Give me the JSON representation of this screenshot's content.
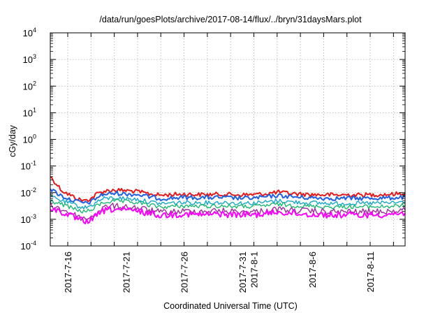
{
  "chart_data": {
    "type": "line",
    "title": "/data/run/goesPlots/archive/2017-08-14/flux/../bryn/31daysMars.plot",
    "xlabel": "Coordinated Universal Time (UTC)",
    "ylabel": "cGy/day",
    "yscale": "log",
    "ylim": [
      0.0001,
      10000
    ],
    "y_ticks": [
      {
        "value": 0.0001,
        "base": "10",
        "exp": "-4"
      },
      {
        "value": 0.001,
        "base": "10",
        "exp": "-3"
      },
      {
        "value": 0.01,
        "base": "10",
        "exp": "-2"
      },
      {
        "value": 0.1,
        "base": "10",
        "exp": "-1"
      },
      {
        "value": 1,
        "base": "10",
        "exp": "0"
      },
      {
        "value": 10,
        "base": "10",
        "exp": "1"
      },
      {
        "value": 100,
        "base": "10",
        "exp": "2"
      },
      {
        "value": 1000,
        "base": "10",
        "exp": "3"
      },
      {
        "value": 10000,
        "base": "10",
        "exp": "4"
      }
    ],
    "xlim": [
      "2017-07-14T12:00",
      "2017-08-14T00:00"
    ],
    "x_tick_labels": [
      {
        "date": "2017-07-16",
        "label": "2017-7-16"
      },
      {
        "date": "2017-07-21",
        "label": "2017-7-21"
      },
      {
        "date": "2017-07-26",
        "label": "2017-7-26"
      },
      {
        "date": "2017-07-31",
        "label": "2017-7-31"
      },
      {
        "date": "2017-08-01",
        "label": "2017-8-1"
      },
      {
        "date": "2017-08-06",
        "label": "2017-8-6"
      },
      {
        "date": "2017-08-11",
        "label": "2017-8-11"
      }
    ],
    "grid": true,
    "legend": "none",
    "series": [
      {
        "color": "#e41a1c",
        "width": 2,
        "points": [
          [
            "2017-07-14T12:00",
            0.04
          ],
          [
            "2017-07-15T00:00",
            0.022
          ],
          [
            "2017-07-15T12:00",
            0.012
          ],
          [
            "2017-07-16T00:00",
            0.009
          ],
          [
            "2017-07-16T12:00",
            0.007
          ],
          [
            "2017-07-17T00:00",
            0.0055
          ],
          [
            "2017-07-17T12:00",
            0.005
          ],
          [
            "2017-07-18T00:00",
            0.006
          ],
          [
            "2017-07-18T12:00",
            0.009
          ],
          [
            "2017-07-19T00:00",
            0.011
          ],
          [
            "2017-07-19T12:00",
            0.012
          ],
          [
            "2017-07-20T00:00",
            0.0125
          ],
          [
            "2017-07-21T00:00",
            0.012
          ],
          [
            "2017-07-22T00:00",
            0.011
          ],
          [
            "2017-07-23T00:00",
            0.009
          ],
          [
            "2017-07-24T00:00",
            0.008
          ],
          [
            "2017-07-25T00:00",
            0.0085
          ],
          [
            "2017-07-26T00:00",
            0.0088
          ],
          [
            "2017-07-27T00:00",
            0.0085
          ],
          [
            "2017-07-28T00:00",
            0.0085
          ],
          [
            "2017-07-29T00:00",
            0.0087
          ],
          [
            "2017-07-30T00:00",
            0.0085
          ],
          [
            "2017-07-31T00:00",
            0.0083
          ],
          [
            "2017-08-01T00:00",
            0.0085
          ],
          [
            "2017-08-02T00:00",
            0.009
          ],
          [
            "2017-08-03T00:00",
            0.0105
          ],
          [
            "2017-08-04T00:00",
            0.0095
          ],
          [
            "2017-08-05T00:00",
            0.0088
          ],
          [
            "2017-08-06T00:00",
            0.0085
          ],
          [
            "2017-08-07T00:00",
            0.0083
          ],
          [
            "2017-08-08T00:00",
            0.0082
          ],
          [
            "2017-08-09T00:00",
            0.0083
          ],
          [
            "2017-08-10T00:00",
            0.0082
          ],
          [
            "2017-08-11T00:00",
            0.0083
          ],
          [
            "2017-08-12T00:00",
            0.0085
          ],
          [
            "2017-08-13T00:00",
            0.0088
          ],
          [
            "2017-08-14T00:00",
            0.0095
          ]
        ]
      },
      {
        "color": "#1f5fe0",
        "width": 2,
        "points": [
          [
            "2017-07-14T12:00",
            0.014
          ],
          [
            "2017-07-15T00:00",
            0.01
          ],
          [
            "2017-07-15T12:00",
            0.0075
          ],
          [
            "2017-07-16T00:00",
            0.006
          ],
          [
            "2017-07-16T12:00",
            0.005
          ],
          [
            "2017-07-17T00:00",
            0.0045
          ],
          [
            "2017-07-17T12:00",
            0.004
          ],
          [
            "2017-07-18T00:00",
            0.0045
          ],
          [
            "2017-07-18T12:00",
            0.0065
          ],
          [
            "2017-07-19T00:00",
            0.0085
          ],
          [
            "2017-07-19T12:00",
            0.009
          ],
          [
            "2017-07-20T00:00",
            0.0095
          ],
          [
            "2017-07-21T00:00",
            0.009
          ],
          [
            "2017-07-22T00:00",
            0.0085
          ],
          [
            "2017-07-23T00:00",
            0.007
          ],
          [
            "2017-07-24T00:00",
            0.006
          ],
          [
            "2017-07-25T00:00",
            0.0063
          ],
          [
            "2017-07-26T00:00",
            0.0067
          ],
          [
            "2017-07-27T00:00",
            0.0065
          ],
          [
            "2017-07-28T00:00",
            0.0065
          ],
          [
            "2017-07-29T00:00",
            0.0066
          ],
          [
            "2017-07-30T00:00",
            0.0064
          ],
          [
            "2017-07-31T00:00",
            0.0062
          ],
          [
            "2017-08-01T00:00",
            0.0063
          ],
          [
            "2017-08-02T00:00",
            0.0068
          ],
          [
            "2017-08-03T00:00",
            0.0078
          ],
          [
            "2017-08-04T00:00",
            0.0072
          ],
          [
            "2017-08-05T00:00",
            0.0066
          ],
          [
            "2017-08-06T00:00",
            0.0064
          ],
          [
            "2017-08-07T00:00",
            0.0062
          ],
          [
            "2017-08-08T00:00",
            0.0061
          ],
          [
            "2017-08-09T00:00",
            0.0062
          ],
          [
            "2017-08-10T00:00",
            0.0061
          ],
          [
            "2017-08-11T00:00",
            0.0062
          ],
          [
            "2017-08-12T00:00",
            0.0063
          ],
          [
            "2017-08-13T00:00",
            0.0064
          ],
          [
            "2017-08-14T00:00",
            0.0068
          ]
        ]
      },
      {
        "color": "#17a7c9",
        "width": 1.4,
        "points": [
          [
            "2017-07-14T12:00",
            0.0075
          ],
          [
            "2017-07-15T00:00",
            0.006
          ],
          [
            "2017-07-15T12:00",
            0.005
          ],
          [
            "2017-07-16T00:00",
            0.0042
          ],
          [
            "2017-07-16T12:00",
            0.0036
          ],
          [
            "2017-07-17T00:00",
            0.003
          ],
          [
            "2017-07-17T12:00",
            0.0028
          ],
          [
            "2017-07-18T00:00",
            0.0032
          ],
          [
            "2017-07-18T12:00",
            0.0045
          ],
          [
            "2017-07-19T00:00",
            0.0058
          ],
          [
            "2017-07-19T12:00",
            0.0062
          ],
          [
            "2017-07-20T00:00",
            0.0064
          ],
          [
            "2017-07-21T00:00",
            0.006
          ],
          [
            "2017-07-22T00:00",
            0.0056
          ],
          [
            "2017-07-23T00:00",
            0.0045
          ],
          [
            "2017-07-24T00:00",
            0.0039
          ],
          [
            "2017-07-25T00:00",
            0.0041
          ],
          [
            "2017-07-26T00:00",
            0.0043
          ],
          [
            "2017-07-27T00:00",
            0.0042
          ],
          [
            "2017-07-28T00:00",
            0.0042
          ],
          [
            "2017-07-29T00:00",
            0.0043
          ],
          [
            "2017-07-30T00:00",
            0.0042
          ],
          [
            "2017-07-31T00:00",
            0.004
          ],
          [
            "2017-08-01T00:00",
            0.0041
          ],
          [
            "2017-08-02T00:00",
            0.0044
          ],
          [
            "2017-08-03T00:00",
            0.005
          ],
          [
            "2017-08-04T00:00",
            0.0046
          ],
          [
            "2017-08-05T00:00",
            0.0043
          ],
          [
            "2017-08-06T00:00",
            0.0042
          ],
          [
            "2017-08-07T00:00",
            0.004
          ],
          [
            "2017-08-08T00:00",
            0.0039
          ],
          [
            "2017-08-09T00:00",
            0.004
          ],
          [
            "2017-08-10T00:00",
            0.0039
          ],
          [
            "2017-08-11T00:00",
            0.004
          ],
          [
            "2017-08-12T00:00",
            0.0041
          ],
          [
            "2017-08-13T00:00",
            0.0042
          ],
          [
            "2017-08-14T00:00",
            0.0044
          ]
        ]
      },
      {
        "color": "#1cb873",
        "width": 1.4,
        "points": [
          [
            "2017-07-14T12:00",
            0.005
          ],
          [
            "2017-07-15T00:00",
            0.0042
          ],
          [
            "2017-07-15T12:00",
            0.0036
          ],
          [
            "2017-07-16T00:00",
            0.003
          ],
          [
            "2017-07-16T12:00",
            0.0025
          ],
          [
            "2017-07-17T00:00",
            0.0021
          ],
          [
            "2017-07-17T12:00",
            0.0019
          ],
          [
            "2017-07-18T00:00",
            0.0022
          ],
          [
            "2017-07-18T12:00",
            0.0032
          ],
          [
            "2017-07-19T00:00",
            0.0042
          ],
          [
            "2017-07-19T12:00",
            0.0046
          ],
          [
            "2017-07-20T00:00",
            0.0048
          ],
          [
            "2017-07-21T00:00",
            0.0045
          ],
          [
            "2017-07-22T00:00",
            0.0042
          ],
          [
            "2017-07-23T00:00",
            0.0034
          ],
          [
            "2017-07-24T00:00",
            0.0029
          ],
          [
            "2017-07-25T00:00",
            0.003
          ],
          [
            "2017-07-26T00:00",
            0.0032
          ],
          [
            "2017-07-27T00:00",
            0.0031
          ],
          [
            "2017-07-28T00:00",
            0.0031
          ],
          [
            "2017-07-29T00:00",
            0.0032
          ],
          [
            "2017-07-30T00:00",
            0.0031
          ],
          [
            "2017-07-31T00:00",
            0.003
          ],
          [
            "2017-08-01T00:00",
            0.003
          ],
          [
            "2017-08-02T00:00",
            0.0033
          ],
          [
            "2017-08-03T00:00",
            0.0037
          ],
          [
            "2017-08-04T00:00",
            0.0034
          ],
          [
            "2017-08-05T00:00",
            0.0032
          ],
          [
            "2017-08-06T00:00",
            0.0031
          ],
          [
            "2017-08-07T00:00",
            0.003
          ],
          [
            "2017-08-08T00:00",
            0.0029
          ],
          [
            "2017-08-09T00:00",
            0.003
          ],
          [
            "2017-08-10T00:00",
            0.0029
          ],
          [
            "2017-08-11T00:00",
            0.003
          ],
          [
            "2017-08-12T00:00",
            0.003
          ],
          [
            "2017-08-13T00:00",
            0.0031
          ],
          [
            "2017-08-14T00:00",
            0.0033
          ]
        ]
      },
      {
        "color": "#9a2f9a",
        "width": 1.4,
        "points": [
          [
            "2017-07-14T12:00",
            0.0035
          ],
          [
            "2017-07-15T00:00",
            0.0028
          ],
          [
            "2017-07-15T12:00",
            0.0023
          ],
          [
            "2017-07-16T00:00",
            0.0019
          ],
          [
            "2017-07-16T12:00",
            0.0015
          ],
          [
            "2017-07-17T00:00",
            0.0012
          ],
          [
            "2017-07-17T12:00",
            0.001
          ],
          [
            "2017-07-18T00:00",
            0.0012
          ],
          [
            "2017-07-18T12:00",
            0.0018
          ],
          [
            "2017-07-19T00:00",
            0.0026
          ],
          [
            "2017-07-19T12:00",
            0.003
          ],
          [
            "2017-07-20T00:00",
            0.0031
          ],
          [
            "2017-07-21T00:00",
            0.0029
          ],
          [
            "2017-07-22T00:00",
            0.0027
          ],
          [
            "2017-07-23T00:00",
            0.0022
          ],
          [
            "2017-07-24T00:00",
            0.0018
          ],
          [
            "2017-07-25T00:00",
            0.0019
          ],
          [
            "2017-07-26T00:00",
            0.002
          ],
          [
            "2017-07-27T00:00",
            0.002
          ],
          [
            "2017-07-28T00:00",
            0.002
          ],
          [
            "2017-07-29T00:00",
            0.0021
          ],
          [
            "2017-07-30T00:00",
            0.002
          ],
          [
            "2017-07-31T00:00",
            0.0019
          ],
          [
            "2017-08-01T00:00",
            0.0019
          ],
          [
            "2017-08-02T00:00",
            0.0021
          ],
          [
            "2017-08-03T00:00",
            0.0024
          ],
          [
            "2017-08-04T00:00",
            0.0022
          ],
          [
            "2017-08-05T00:00",
            0.0021
          ],
          [
            "2017-08-06T00:00",
            0.002
          ],
          [
            "2017-08-07T00:00",
            0.0019
          ],
          [
            "2017-08-08T00:00",
            0.0019
          ],
          [
            "2017-08-09T00:00",
            0.0019
          ],
          [
            "2017-08-10T00:00",
            0.0019
          ],
          [
            "2017-08-11T00:00",
            0.0019
          ],
          [
            "2017-08-12T00:00",
            0.002
          ],
          [
            "2017-08-13T00:00",
            0.002
          ],
          [
            "2017-08-14T00:00",
            0.0022
          ]
        ]
      },
      {
        "color": "#ff00ff",
        "width": 2,
        "points": [
          [
            "2017-07-14T12:00",
            0.0028
          ],
          [
            "2017-07-15T00:00",
            0.0022
          ],
          [
            "2017-07-15T12:00",
            0.0018
          ],
          [
            "2017-07-16T00:00",
            0.0015
          ],
          [
            "2017-07-16T12:00",
            0.0012
          ],
          [
            "2017-07-17T00:00",
            0.00095
          ],
          [
            "2017-07-17T12:00",
            0.00082
          ],
          [
            "2017-07-18T00:00",
            0.00095
          ],
          [
            "2017-07-18T12:00",
            0.0014
          ],
          [
            "2017-07-19T00:00",
            0.002
          ],
          [
            "2017-07-19T12:00",
            0.0023
          ],
          [
            "2017-07-20T00:00",
            0.0024
          ],
          [
            "2017-07-21T00:00",
            0.0022
          ],
          [
            "2017-07-22T00:00",
            0.002
          ],
          [
            "2017-07-23T00:00",
            0.0017
          ],
          [
            "2017-07-24T00:00",
            0.0014
          ],
          [
            "2017-07-25T00:00",
            0.0015
          ],
          [
            "2017-07-26T00:00",
            0.0016
          ],
          [
            "2017-07-27T00:00",
            0.0015
          ],
          [
            "2017-07-28T00:00",
            0.0015
          ],
          [
            "2017-07-29T00:00",
            0.0016
          ],
          [
            "2017-07-30T00:00",
            0.0015
          ],
          [
            "2017-07-31T00:00",
            0.0015
          ],
          [
            "2017-08-01T00:00",
            0.0015
          ],
          [
            "2017-08-02T00:00",
            0.0016
          ],
          [
            "2017-08-03T00:00",
            0.0019
          ],
          [
            "2017-08-04T00:00",
            0.0017
          ],
          [
            "2017-08-05T00:00",
            0.0016
          ],
          [
            "2017-08-06T00:00",
            0.0015
          ],
          [
            "2017-08-07T00:00",
            0.0015
          ],
          [
            "2017-08-08T00:00",
            0.0014
          ],
          [
            "2017-08-09T00:00",
            0.0015
          ],
          [
            "2017-08-10T00:00",
            0.0014
          ],
          [
            "2017-08-11T00:00",
            0.0015
          ],
          [
            "2017-08-12T00:00",
            0.0015
          ],
          [
            "2017-08-13T00:00",
            0.0016
          ],
          [
            "2017-08-14T00:00",
            0.0017
          ]
        ]
      }
    ]
  }
}
